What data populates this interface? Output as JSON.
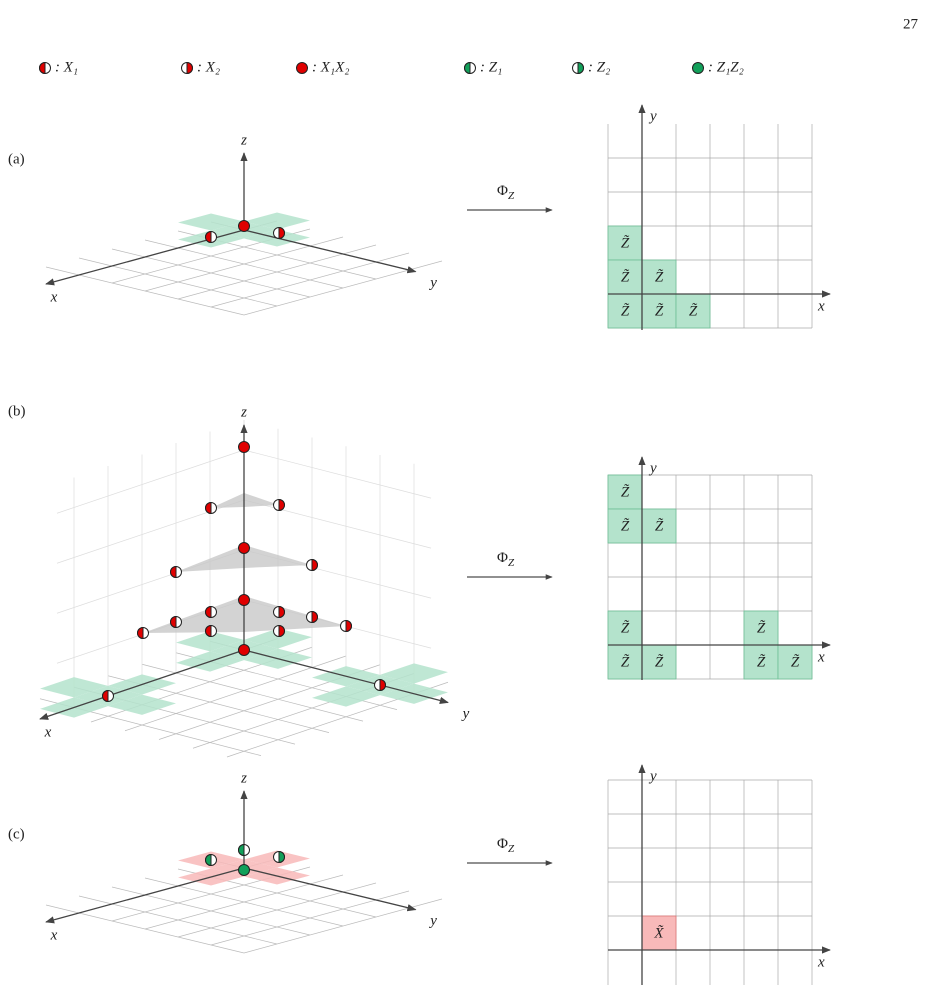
{
  "page_number": "27",
  "legend": [
    ": X₁",
    ": X₂",
    ": X₁X₂",
    ": Z₁",
    ": Z₂",
    ": Z₁Z₂"
  ],
  "panels": [
    {
      "label": "(a)",
      "map": {
        "symbol": "Φ",
        "sub": "Z"
      },
      "axes_3d": [
        "x",
        "y",
        "z"
      ],
      "axes_2d": [
        "x",
        "y"
      ],
      "cells": [
        "Z̃",
        "Z̃",
        "Z̃",
        "Z̃",
        "Z̃",
        "Z̃"
      ]
    },
    {
      "label": "(b)",
      "map": {
        "symbol": "Φ",
        "sub": "Z"
      },
      "axes_3d": [
        "x",
        "y",
        "z"
      ],
      "axes_2d": [
        "x",
        "y"
      ],
      "cells": [
        "Z̃",
        "Z̃",
        "Z̃",
        "Z̃",
        "Z̃",
        "Z̃",
        "Z̃",
        "Z̃",
        "Z̃"
      ]
    },
    {
      "label": "(c)",
      "map": {
        "symbol": "Φ",
        "sub": "Z"
      },
      "axes_3d": [
        "x",
        "y",
        "z"
      ],
      "axes_2d": [
        "x",
        "y"
      ],
      "cells": [
        "X̃"
      ]
    }
  ]
}
